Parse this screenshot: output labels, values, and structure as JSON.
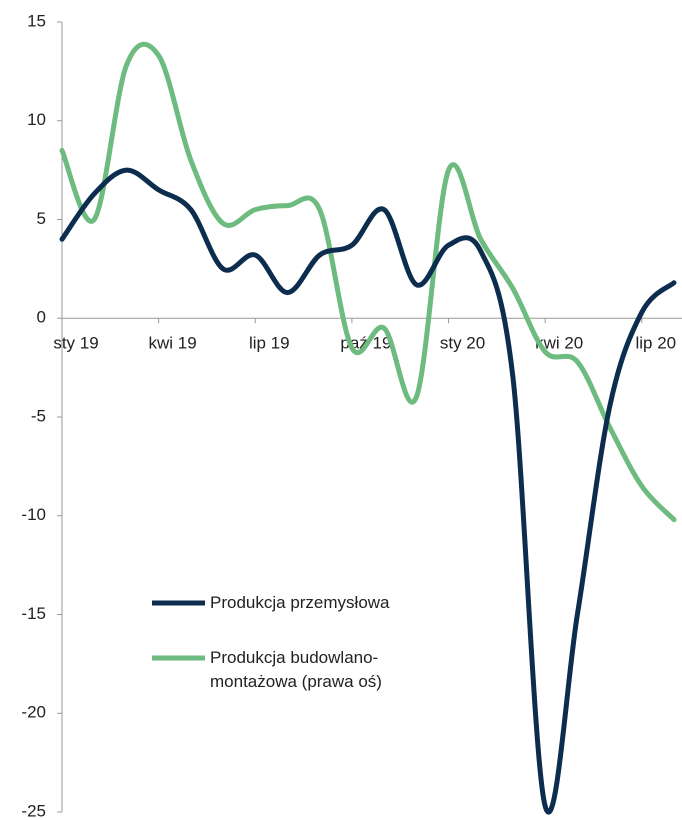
{
  "chart_data": {
    "type": "line",
    "categories": [
      "sty 19",
      null,
      null,
      "kwi 19",
      null,
      null,
      "lip 19",
      null,
      null,
      "paź 19",
      null,
      null,
      "sty 20",
      null,
      null,
      "kwi 20",
      null,
      null,
      "lip 20",
      null
    ],
    "series": [
      {
        "name": "Produkcja przemysłowa",
        "color": "#0d2d4f",
        "values": [
          4.0,
          6.3,
          7.5,
          6.5,
          5.5,
          2.5,
          3.2,
          1.3,
          3.2,
          3.7,
          5.5,
          1.7,
          3.7,
          3.4,
          -3.0,
          -24.7,
          -15.0,
          -4.5,
          0.3,
          1.8
        ]
      },
      {
        "name": "Produkcja budowlano-montażowa (prawa oś)",
        "color": "#6dbb7f",
        "values": [
          8.5,
          5.0,
          12.8,
          13.3,
          8.0,
          4.8,
          5.5,
          5.7,
          5.5,
          -1.5,
          -0.5,
          -4.0,
          7.5,
          4.0,
          1.5,
          -1.7,
          -2.2,
          -5.5,
          -8.5,
          -10.2
        ]
      }
    ],
    "ylim": [
      -25,
      15
    ],
    "yticks": [
      15,
      10,
      5,
      0,
      -5,
      -10,
      -15,
      -20,
      -25
    ]
  }
}
